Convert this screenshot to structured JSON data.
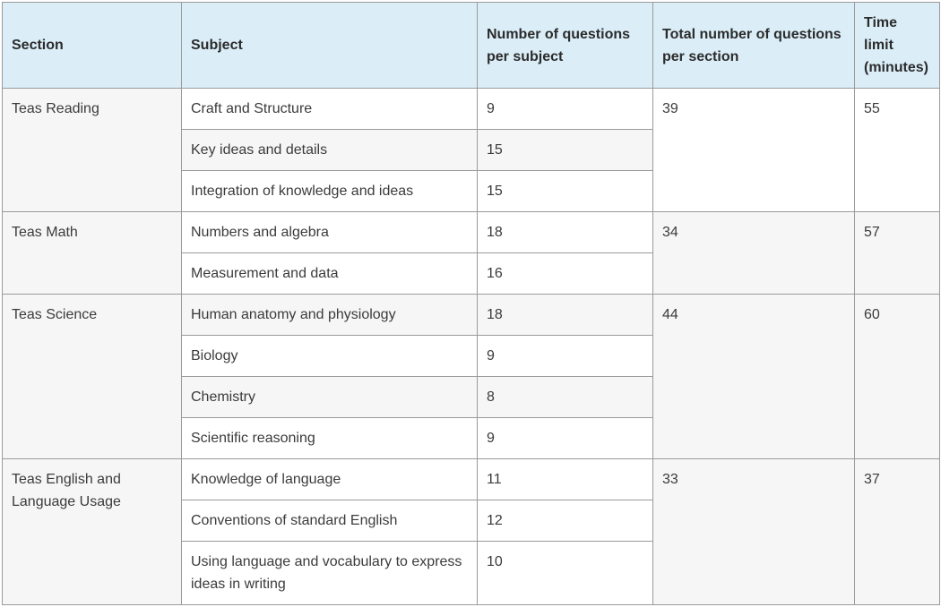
{
  "headers": {
    "section": "Section",
    "subject": "Subject",
    "per_subject": "Number of questions per subject",
    "per_section": "Total number of questions per section",
    "time_limit": "Time limit (minutes)"
  },
  "sections": [
    {
      "name": "Teas Reading",
      "total": "39",
      "time": "55",
      "subjects": [
        {
          "subject": "Craft and Structure",
          "count": "9"
        },
        {
          "subject": "Key ideas and details",
          "count": "15"
        },
        {
          "subject": "Integration of knowledge and ideas",
          "count": "15"
        }
      ]
    },
    {
      "name": "Teas Math",
      "total": "34",
      "time": "57",
      "subjects": [
        {
          "subject": "Numbers and algebra",
          "count": "18"
        },
        {
          "subject": "Measurement and data",
          "count": "16"
        }
      ]
    },
    {
      "name": "Teas Science",
      "total": "44",
      "time": "60",
      "subjects": [
        {
          "subject": "Human anatomy and physiology",
          "count": "18"
        },
        {
          "subject": "Biology",
          "count": "9"
        },
        {
          "subject": "Chemistry",
          "count": "8"
        },
        {
          "subject": "Scientific reasoning",
          "count": "9"
        }
      ]
    },
    {
      "name": "Teas English and Language Usage",
      "total": "33",
      "time": "37",
      "subjects": [
        {
          "subject": "Knowledge of language",
          "count": "11"
        },
        {
          "subject": "Conventions of standard English",
          "count": "12"
        },
        {
          "subject": "Using language and vocabulary to express ideas in writing",
          "count": "10"
        }
      ]
    }
  ]
}
